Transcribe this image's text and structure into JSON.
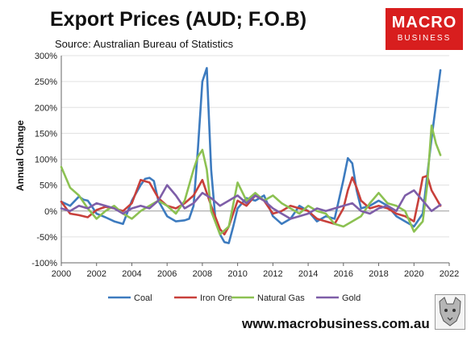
{
  "header": {
    "title": "Export Prices (AUD; F.O.B)",
    "subtitle": "Source: Australian Bureau of Statistics",
    "logo_line1": "MACRO",
    "logo_line2": "BUSINESS",
    "logo_color": "#d81e1e"
  },
  "footer": {
    "url": "www.macrobusiness.com.au"
  },
  "chart_data": {
    "type": "line",
    "title": "Export Prices (AUD; F.O.B)",
    "subtitle": "Source: Australian Bureau of Statistics",
    "xlabel": "",
    "ylabel": "Annual Change",
    "xlim": [
      2000,
      2022
    ],
    "ylim": [
      -100,
      300
    ],
    "x_ticks": [
      2000,
      2002,
      2004,
      2006,
      2008,
      2010,
      2012,
      2014,
      2016,
      2018,
      2020,
      2022
    ],
    "y_ticks": [
      -100,
      -50,
      0,
      50,
      100,
      150,
      200,
      250,
      300
    ],
    "y_tick_format": "percent",
    "grid": "horizontal",
    "legend_position": "bottom",
    "series": [
      {
        "name": "Coal",
        "color": "#3d7bbf",
        "x": [
          2000,
          2000.5,
          2001,
          2001.25,
          2001.5,
          2001.75,
          2002,
          2002.5,
          2003,
          2003.5,
          2004,
          2004.5,
          2004.75,
          2005,
          2005.25,
          2005.5,
          2006,
          2006.5,
          2007,
          2007.25,
          2007.5,
          2007.75,
          2008,
          2008.25,
          2008.5,
          2008.75,
          2009,
          2009.25,
          2009.5,
          2009.75,
          2010,
          2010.5,
          2011,
          2011.5,
          2012,
          2012.5,
          2013,
          2013.5,
          2014,
          2014.5,
          2015,
          2015.5,
          2016,
          2016.25,
          2016.5,
          2016.75,
          2017,
          2017.5,
          2018,
          2018.5,
          2019,
          2019.5,
          2020,
          2020.5,
          2021,
          2021.5
        ],
        "values": [
          18,
          10,
          28,
          22,
          20,
          8,
          -5,
          -12,
          -20,
          -25,
          20,
          50,
          62,
          64,
          58,
          20,
          -10,
          -20,
          -18,
          -15,
          10,
          120,
          250,
          276,
          80,
          -20,
          -45,
          -60,
          -62,
          -30,
          5,
          25,
          20,
          30,
          -10,
          -25,
          -15,
          10,
          0,
          -20,
          -10,
          -15,
          60,
          102,
          92,
          40,
          5,
          10,
          20,
          10,
          -10,
          -20,
          -30,
          -5,
          140,
          272
        ]
      },
      {
        "name": "Iron Ore",
        "color": "#c8403b",
        "x": [
          2000,
          2000.5,
          2001,
          2001.5,
          2002,
          2002.5,
          2003,
          2003.5,
          2004,
          2004.5,
          2005,
          2005.5,
          2006,
          2006.5,
          2007,
          2007.5,
          2008,
          2008.5,
          2009,
          2009.25,
          2009.5,
          2010,
          2010.5,
          2011,
          2011.5,
          2012,
          2012.5,
          2013,
          2013.5,
          2014,
          2014.5,
          2015,
          2015.5,
          2016,
          2016.25,
          2016.5,
          2016.75,
          2017,
          2017.5,
          2018,
          2018.5,
          2019,
          2019.5,
          2020,
          2020.25,
          2020.5,
          2020.75,
          2021,
          2021.5
        ],
        "values": [
          18,
          -5,
          -8,
          -12,
          2,
          8,
          5,
          0,
          15,
          60,
          55,
          25,
          10,
          5,
          15,
          30,
          60,
          10,
          -35,
          -45,
          -30,
          20,
          10,
          30,
          20,
          -5,
          0,
          10,
          5,
          0,
          -15,
          -20,
          -25,
          5,
          40,
          65,
          45,
          20,
          5,
          10,
          5,
          -5,
          -10,
          -20,
          20,
          65,
          68,
          40,
          10
        ]
      },
      {
        "name": "Natural Gas",
        "color": "#8cc152",
        "x": [
          2000,
          2000.5,
          2001,
          2001.5,
          2002,
          2002.5,
          2003,
          2003.5,
          2004,
          2004.5,
          2005,
          2005.5,
          2006,
          2006.5,
          2007,
          2007.5,
          2007.75,
          2008,
          2008.25,
          2008.5,
          2009,
          2009.5,
          2010,
          2010.5,
          2011,
          2011.5,
          2012,
          2012.5,
          2013,
          2013.5,
          2014,
          2014.5,
          2015,
          2015.5,
          2016,
          2016.5,
          2017,
          2017.5,
          2018,
          2018.5,
          2019,
          2019.5,
          2020,
          2020.5,
          2020.75,
          2021,
          2021.25,
          2021.5
        ],
        "values": [
          85,
          45,
          30,
          5,
          -15,
          0,
          10,
          -5,
          -15,
          0,
          10,
          20,
          10,
          -5,
          20,
          80,
          105,
          118,
          80,
          0,
          -45,
          -30,
          55,
          20,
          35,
          20,
          30,
          15,
          5,
          -5,
          10,
          0,
          -5,
          -25,
          -30,
          -20,
          -10,
          15,
          35,
          15,
          10,
          0,
          -40,
          -20,
          50,
          165,
          130,
          108
        ]
      },
      {
        "name": "Gold",
        "color": "#7e5ea8",
        "x": [
          2000,
          2000.5,
          2001,
          2001.5,
          2002,
          2002.5,
          2003,
          2003.5,
          2004,
          2004.5,
          2005,
          2005.5,
          2006,
          2006.5,
          2007,
          2007.5,
          2008,
          2008.5,
          2009,
          2009.5,
          2010,
          2010.5,
          2011,
          2011.5,
          2012,
          2012.5,
          2013,
          2013.5,
          2014,
          2014.5,
          2015,
          2015.5,
          2016,
          2016.5,
          2017,
          2017.5,
          2018,
          2018.5,
          2019,
          2019.5,
          2020,
          2020.5,
          2021,
          2021.5
        ],
        "values": [
          5,
          0,
          10,
          5,
          15,
          10,
          5,
          -5,
          5,
          10,
          5,
          20,
          50,
          30,
          5,
          15,
          35,
          25,
          10,
          20,
          30,
          15,
          30,
          20,
          5,
          -5,
          -15,
          -10,
          -5,
          5,
          0,
          5,
          10,
          15,
          0,
          -5,
          5,
          10,
          0,
          30,
          40,
          20,
          0,
          12
        ]
      }
    ]
  }
}
